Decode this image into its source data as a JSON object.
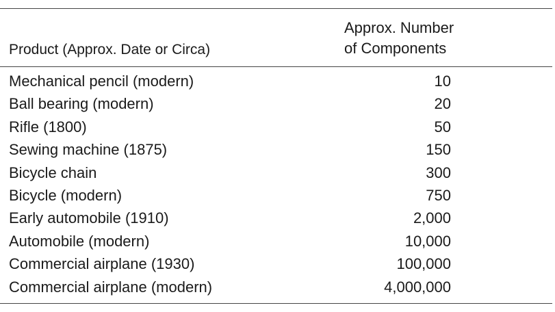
{
  "table": {
    "header": {
      "product": "Product (Approx. Date or Circa)",
      "components_line1": "Approx. Number",
      "components_line2": "of Components"
    },
    "rows": [
      {
        "product": "Mechanical pencil (modern)",
        "components": "10"
      },
      {
        "product": "Ball bearing (modern)",
        "components": "20"
      },
      {
        "product": "Rifle (1800)",
        "components": "50"
      },
      {
        "product": "Sewing machine (1875)",
        "components": "150"
      },
      {
        "product": "Bicycle chain",
        "components": "300"
      },
      {
        "product": "Bicycle (modern)",
        "components": "750"
      },
      {
        "product": "Early automobile (1910)",
        "components": "2,000"
      },
      {
        "product": "Automobile (modern)",
        "components": "10,000"
      },
      {
        "product": "Commercial airplane (1930)",
        "components": "100,000"
      },
      {
        "product": "Commercial airplane (modern)",
        "components": "4,000,000"
      }
    ]
  }
}
